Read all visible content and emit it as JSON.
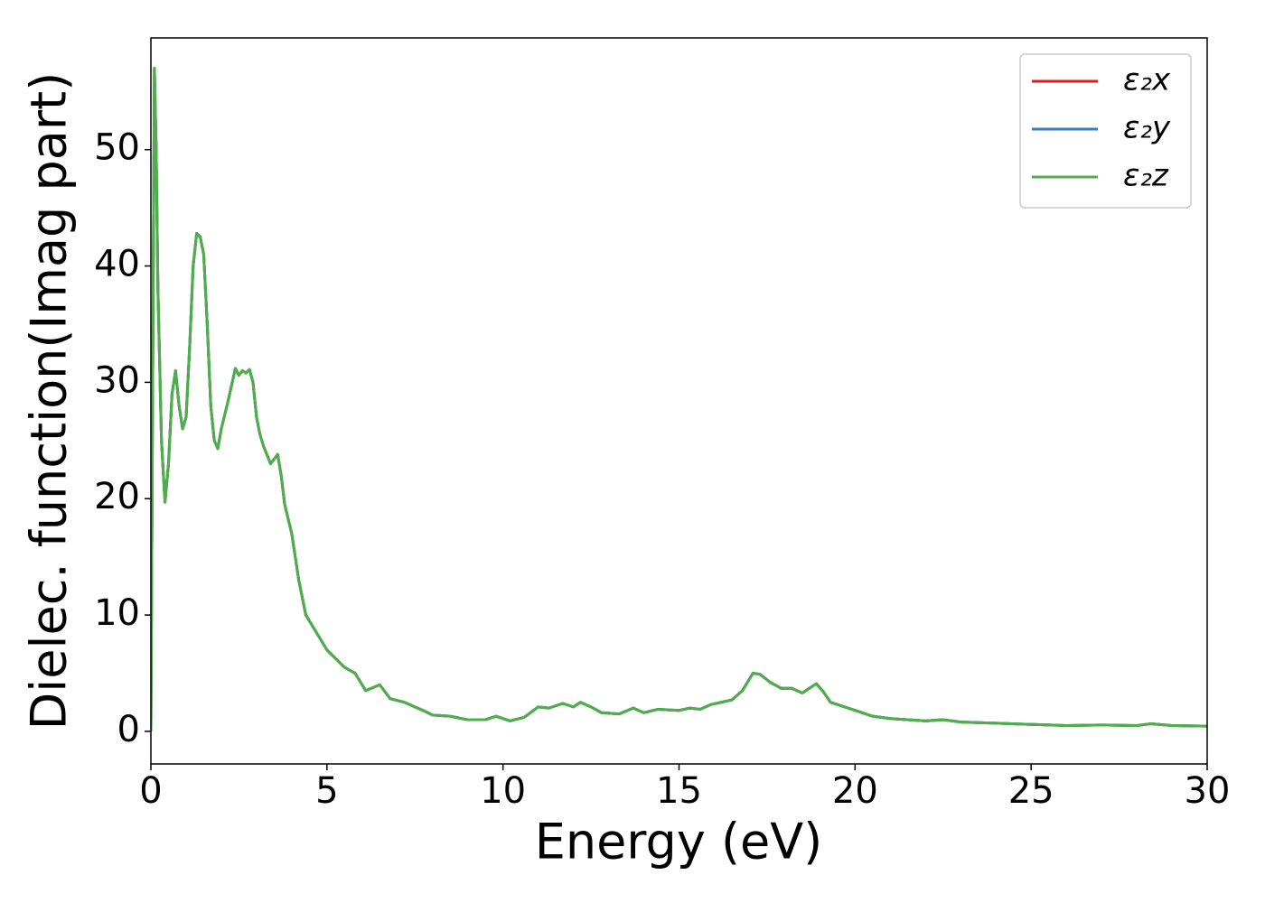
{
  "chart_data": {
    "type": "line",
    "xlabel": "Energy (eV)",
    "ylabel": "Dielec. function(Imag part)",
    "x": [
      0,
      0.05,
      0.1,
      0.15,
      0.2,
      0.3,
      0.4,
      0.5,
      0.6,
      0.7,
      0.8,
      0.9,
      1.0,
      1.1,
      1.2,
      1.3,
      1.4,
      1.5,
      1.6,
      1.7,
      1.8,
      1.9,
      2.0,
      2.2,
      2.4,
      2.5,
      2.6,
      2.7,
      2.8,
      2.9,
      3.0,
      3.1,
      3.2,
      3.4,
      3.6,
      3.7,
      3.8,
      4.0,
      4.2,
      4.4,
      4.7,
      5.0,
      5.5,
      5.8,
      6.1,
      6.5,
      6.8,
      7.2,
      7.8,
      8.0,
      8.5,
      9.0,
      9.5,
      9.8,
      10.2,
      10.6,
      11.0,
      11.3,
      11.7,
      12.0,
      12.2,
      12.5,
      12.8,
      13.3,
      13.7,
      14.0,
      14.4,
      15.0,
      15.3,
      15.6,
      15.9,
      16.5,
      16.8,
      17.1,
      17.3,
      17.6,
      17.9,
      18.2,
      18.5,
      18.9,
      19.1,
      19.3,
      20.0,
      20.5,
      21.0,
      22.0,
      22.5,
      23.0,
      24.0,
      25.0,
      26.0,
      27.0,
      28.0,
      28.4,
      29.0,
      30.0
    ],
    "series": [
      {
        "name": "ε₂x",
        "color": "#e41a1c",
        "values": [
          0,
          30,
          57,
          50,
          38,
          25,
          19.7,
          23,
          29,
          31,
          28,
          26,
          27,
          33,
          40,
          42.8,
          42.5,
          41,
          35,
          28,
          25,
          24.3,
          26,
          28.5,
          31.2,
          30.6,
          31.0,
          30.8,
          31.1,
          30,
          27,
          25.5,
          24.5,
          23,
          23.8,
          22,
          19.5,
          17,
          13,
          10,
          8.5,
          7,
          5.5,
          5,
          3.5,
          4,
          2.8,
          2.5,
          1.7,
          1.4,
          1.3,
          1.0,
          1.0,
          1.3,
          0.9,
          1.2,
          2.1,
          2.0,
          2.4,
          2.1,
          2.5,
          2.1,
          1.6,
          1.5,
          2.0,
          1.6,
          1.9,
          1.8,
          2.0,
          1.9,
          2.3,
          2.7,
          3.5,
          5,
          4.9,
          4.2,
          3.7,
          3.7,
          3.3,
          4.1,
          3.4,
          2.5,
          1.8,
          1.3,
          1.1,
          0.9,
          1.0,
          0.8,
          0.7,
          0.6,
          0.5,
          0.55,
          0.5,
          0.65,
          0.5,
          0.45
        ]
      },
      {
        "name": "ε₂y",
        "color": "#377eb8",
        "values": [
          0,
          30,
          57,
          50,
          38,
          25,
          19.7,
          23,
          29,
          31,
          28,
          26,
          27,
          33,
          40,
          42.8,
          42.5,
          41,
          35,
          28,
          25,
          24.3,
          26,
          28.5,
          31.2,
          30.6,
          31.0,
          30.8,
          31.1,
          30,
          27,
          25.5,
          24.5,
          23,
          23.8,
          22,
          19.5,
          17,
          13,
          10,
          8.5,
          7,
          5.5,
          5,
          3.5,
          4,
          2.8,
          2.5,
          1.7,
          1.4,
          1.3,
          1.0,
          1.0,
          1.3,
          0.9,
          1.2,
          2.1,
          2.0,
          2.4,
          2.1,
          2.5,
          2.1,
          1.6,
          1.5,
          2.0,
          1.6,
          1.9,
          1.8,
          2.0,
          1.9,
          2.3,
          2.7,
          3.5,
          5,
          4.9,
          4.2,
          3.7,
          3.7,
          3.3,
          4.1,
          3.4,
          2.5,
          1.8,
          1.3,
          1.1,
          0.9,
          1.0,
          0.8,
          0.7,
          0.6,
          0.5,
          0.55,
          0.5,
          0.65,
          0.5,
          0.45
        ]
      },
      {
        "name": "ε₂z",
        "color": "#4daf4a",
        "values": [
          0,
          30,
          57,
          50,
          38,
          25,
          19.7,
          23,
          29,
          31,
          28,
          26,
          27,
          33,
          40,
          42.8,
          42.5,
          41,
          35,
          28,
          25,
          24.3,
          26,
          28.5,
          31.2,
          30.6,
          31.0,
          30.8,
          31.1,
          30,
          27,
          25.5,
          24.5,
          23,
          23.8,
          22,
          19.5,
          17,
          13,
          10,
          8.5,
          7,
          5.5,
          5,
          3.5,
          4,
          2.8,
          2.5,
          1.7,
          1.4,
          1.3,
          1.0,
          1.0,
          1.3,
          0.9,
          1.2,
          2.1,
          2.0,
          2.4,
          2.1,
          2.5,
          2.1,
          1.6,
          1.5,
          2.0,
          1.6,
          1.9,
          1.8,
          2.0,
          1.9,
          2.3,
          2.7,
          3.5,
          5,
          4.9,
          4.2,
          3.7,
          3.7,
          3.3,
          4.1,
          3.4,
          2.5,
          1.8,
          1.3,
          1.1,
          0.9,
          1.0,
          0.8,
          0.7,
          0.6,
          0.5,
          0.55,
          0.5,
          0.65,
          0.5,
          0.45
        ]
      }
    ],
    "xlim": [
      0,
      30
    ],
    "xticks": [
      0,
      5,
      10,
      15,
      20,
      25,
      30
    ],
    "ylim": [
      -2.8,
      59.6
    ],
    "yticks": [
      0,
      10,
      20,
      30,
      40,
      50
    ],
    "grid": false,
    "legend": "upper right"
  }
}
